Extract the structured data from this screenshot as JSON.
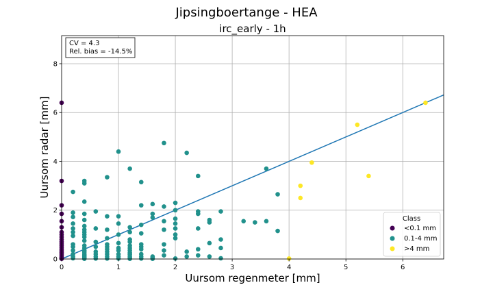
{
  "chart_data": {
    "type": "scatter",
    "title": "Jipsingboertange - HEA",
    "subtitle": "irc_early - 1h",
    "xlabel": "Uursom regenmeter [mm]",
    "ylabel": "Uursom radar [mm]",
    "xlim": [
      0,
      6.72
    ],
    "ylim": [
      0,
      9.15
    ],
    "xticks": [
      0,
      1,
      2,
      3,
      4,
      5,
      6
    ],
    "yticks": [
      0,
      2,
      4,
      6,
      8
    ],
    "grid": true,
    "stats": [
      "CV = 4.3",
      "Rel. bias = -14.5%"
    ],
    "legend": {
      "title": "Class",
      "placement": "lower right",
      "entries": [
        "<0.1 mm",
        "0.1-4 mm",
        ">4 mm"
      ]
    },
    "fit_line": {
      "x": [
        0,
        6.72
      ],
      "y": [
        0,
        6.72
      ],
      "color": "#1f77b4"
    },
    "series": [
      {
        "name": "<0.1 mm",
        "color": "#440154",
        "x": [
          0,
          0,
          0,
          0,
          0,
          0,
          0,
          0,
          0,
          0,
          0,
          0,
          0,
          0,
          0,
          0,
          0,
          0,
          0,
          0,
          0,
          0
        ],
        "y": [
          6.4,
          3.2,
          2.2,
          1.85,
          1.55,
          1.3,
          1.1,
          1.0,
          0.9,
          0.8,
          0.7,
          0.62,
          0.55,
          0.48,
          0.4,
          0.33,
          0.26,
          0.2,
          0.14,
          0.08,
          0.04,
          0.01
        ]
      },
      {
        "name": "0.1-4 mm",
        "color": "#21918c",
        "x": [
          0.2,
          0.2,
          0.2,
          0.2,
          0.2,
          0.2,
          0.2,
          0.2,
          0.2,
          0.2,
          0.2,
          0.2,
          0.2,
          0.4,
          0.4,
          0.4,
          0.4,
          0.4,
          0.4,
          0.4,
          0.4,
          0.4,
          0.4,
          0.4,
          0.4,
          0.4,
          0.4,
          0.4,
          0.4,
          0.4,
          0.4,
          0.4,
          0.4,
          0.4,
          0.6,
          0.6,
          0.6,
          0.6,
          0.6,
          0.6,
          0.6,
          0.6,
          0.8,
          0.8,
          0.8,
          0.8,
          0.8,
          0.8,
          0.8,
          0.8,
          0.8,
          0.8,
          0.8,
          1.0,
          1.0,
          1.0,
          1.0,
          1.0,
          1.0,
          1.0,
          1.0,
          1.0,
          1.0,
          1.2,
          1.2,
          1.2,
          1.2,
          1.2,
          1.2,
          1.2,
          1.2,
          1.2,
          1.2,
          1.2,
          1.2,
          1.2,
          1.4,
          1.4,
          1.4,
          1.4,
          1.4,
          1.4,
          1.4,
          1.4,
          1.4,
          1.4,
          1.6,
          1.6,
          1.6,
          1.6,
          1.6,
          1.6,
          1.8,
          1.8,
          1.8,
          1.8,
          1.8,
          1.8,
          1.8,
          2.0,
          2.0,
          2.0,
          2.0,
          2.0,
          2.0,
          2.0,
          2.0,
          2.2,
          2.2,
          2.2,
          2.4,
          2.4,
          2.4,
          2.4,
          2.4,
          2.4,
          2.6,
          2.6,
          2.6,
          2.6,
          2.8,
          2.8,
          2.8,
          2.8,
          3.2,
          3.4,
          3.6,
          3.6,
          3.8,
          3.8
        ],
        "y": [
          2.75,
          1.9,
          1.72,
          1.45,
          1.25,
          1.1,
          0.95,
          0.6,
          0.5,
          0.35,
          0.2,
          0.1,
          0.03,
          3.2,
          3.1,
          2.35,
          1.85,
          1.6,
          1.35,
          1.2,
          1.1,
          1.0,
          0.9,
          0.75,
          0.55,
          0.45,
          0.35,
          0.28,
          0.2,
          0.15,
          0.1,
          0.06,
          0.03,
          0.01,
          1.95,
          1.25,
          0.7,
          0.5,
          0.3,
          0.2,
          0.1,
          0.02,
          3.35,
          1.75,
          1.2,
          0.85,
          0.6,
          0.5,
          0.4,
          0.3,
          0.2,
          0.1,
          0.02,
          4.4,
          1.75,
          1.45,
          1.0,
          0.65,
          0.45,
          0.35,
          0.2,
          0.1,
          0.02,
          3.7,
          1.3,
          1.1,
          0.8,
          0.7,
          0.55,
          0.45,
          0.35,
          0.25,
          0.18,
          0.1,
          0.05,
          0.01,
          3.15,
          2.2,
          1.4,
          1.05,
          0.6,
          0.5,
          0.4,
          0.2,
          0.1,
          0.02,
          2.25,
          1.85,
          1.7,
          0.1,
          0.05,
          0.01,
          4.75,
          2.15,
          1.55,
          1.2,
          0.6,
          0.35,
          0.15,
          2.3,
          2.0,
          1.65,
          1.45,
          1.25,
          1.0,
          0.85,
          0.02,
          4.35,
          0.3,
          0.1,
          3.4,
          1.95,
          1.85,
          1.25,
          0.4,
          0.15,
          1.6,
          1.5,
          0.65,
          0.1,
          1.95,
          0.8,
          0.45,
          0.03,
          1.55,
          1.5,
          3.7,
          1.55,
          2.65,
          1.15
        ]
      },
      {
        "name": ">4 mm",
        "color": "#fde725",
        "x": [
          4.0,
          4.2,
          4.2,
          4.4,
          5.2,
          5.4,
          6.4
        ],
        "y": [
          0.02,
          3.0,
          2.5,
          3.95,
          5.5,
          3.4,
          6.4
        ]
      }
    ]
  }
}
